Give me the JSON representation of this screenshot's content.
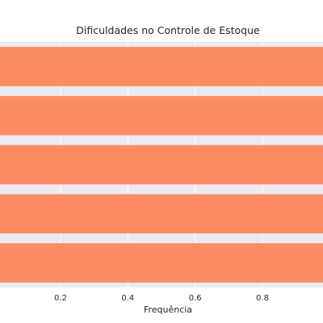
{
  "chart_data": {
    "type": "bar",
    "orientation": "horizontal",
    "title": "Dificuldades no Controle de Estoque",
    "xlabel": "Frequência",
    "ylabel": "",
    "categories": [
      "",
      "",
      "",
      "",
      ""
    ],
    "values": [
      1,
      1,
      1,
      1,
      1
    ],
    "xlim": [
      0.02,
      0.98
    ],
    "xticks": [
      0.2,
      0.4,
      0.6,
      0.8
    ],
    "xtick_labels": [
      "0.2",
      "0.4",
      "0.6",
      "0.8"
    ],
    "grid": true,
    "bar_color": "#fc8d62",
    "background_color": "#eaeaf2",
    "grid_color": "#ffffff"
  }
}
